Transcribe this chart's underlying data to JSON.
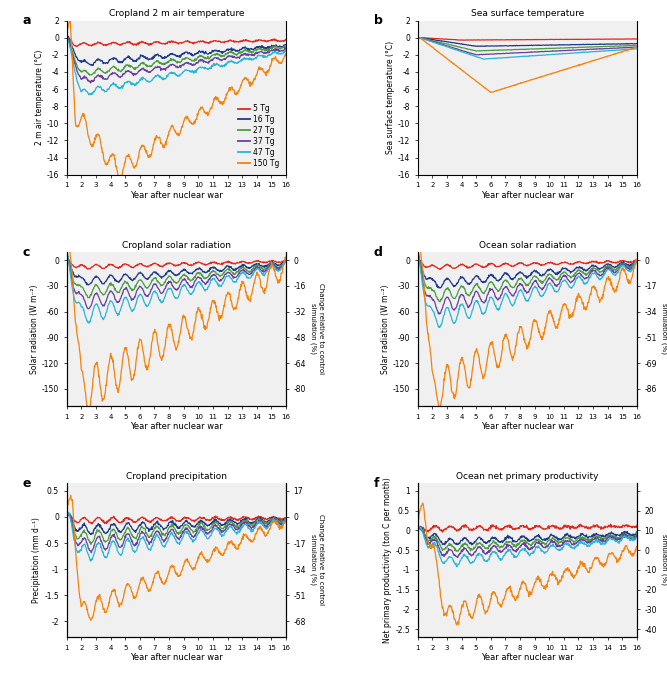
{
  "colors": {
    "5Tg": "#e0281e",
    "16Tg": "#1e3a8a",
    "27Tg": "#4a9e3f",
    "37Tg": "#6a3fa0",
    "47Tg": "#29b6d4",
    "150Tg": "#f5820a"
  },
  "legend_labels": [
    "5 Tg",
    "16 Tg",
    "27 Tg",
    "37 Tg",
    "47 Tg",
    "150 Tg"
  ],
  "xlabel": "Year after nuclear war",
  "panel_titles": [
    "Cropland 2 m air temperature",
    "Sea surface temperature",
    "Cropland solar radiation",
    "Ocean solar radiation",
    "Cropland precipitation",
    "Ocean net primary productivity"
  ],
  "ylabels": [
    "2 m air temperature (°C)",
    "Sea surface temperature (°C)",
    "Solar radiation (W m⁻²)",
    "Solar radiation (W m⁻²)",
    "Precipitation (mm d⁻¹)",
    "Net primary productivity (ton C per month)"
  ],
  "background_color": "#f0f0f0",
  "panel_labels": [
    "a",
    "b",
    "c",
    "d",
    "e",
    "f"
  ]
}
